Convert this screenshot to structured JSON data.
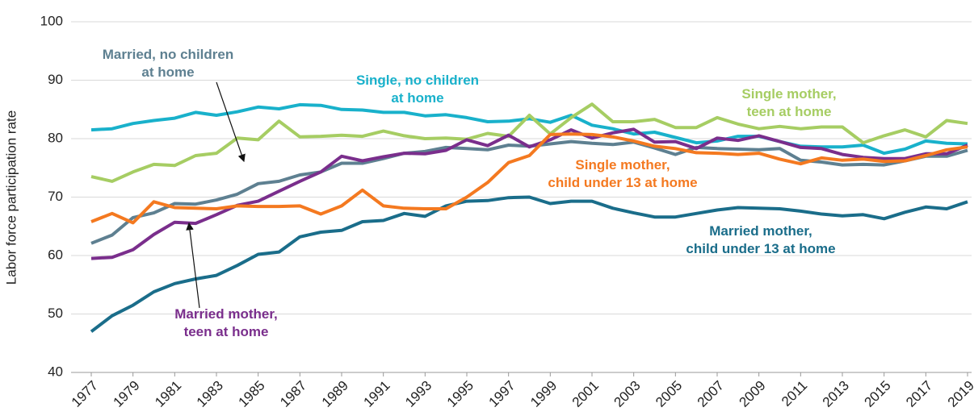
{
  "chart_data": {
    "type": "line",
    "ylabel": "Labor force participation rate",
    "x": [
      1977,
      1978,
      1979,
      1980,
      1981,
      1982,
      1983,
      1984,
      1985,
      1986,
      1987,
      1988,
      1989,
      1990,
      1991,
      1992,
      1993,
      1994,
      1995,
      1996,
      1997,
      1998,
      1999,
      2000,
      2001,
      2002,
      2003,
      2004,
      2005,
      2006,
      2007,
      2008,
      2009,
      2010,
      2011,
      2012,
      2013,
      2014,
      2015,
      2016,
      2017,
      2018,
      2019
    ],
    "xlim": [
      1977,
      2019
    ],
    "xticks": [
      1977,
      1979,
      1981,
      1983,
      1985,
      1987,
      1989,
      1991,
      1993,
      1995,
      1997,
      1999,
      2001,
      2003,
      2005,
      2007,
      2009,
      2011,
      2013,
      2015,
      2017,
      2019
    ],
    "ylim": [
      40,
      100
    ],
    "yticks": [
      40,
      50,
      60,
      70,
      80,
      90,
      100
    ],
    "grid": true,
    "series": [
      {
        "name": "Single, no children\nat home",
        "color": "#19b1cb",
        "values": [
          81.5,
          81.7,
          82.6,
          83.1,
          83.5,
          84.5,
          84,
          84.6,
          85.4,
          85.1,
          85.8,
          85.7,
          85,
          84.9,
          84.5,
          84.5,
          83.9,
          84.1,
          83.6,
          82.9,
          83,
          83.4,
          82.8,
          84,
          82.3,
          81.7,
          80.8,
          81.1,
          80.2,
          79.3,
          79.6,
          80.4,
          80.4,
          79.5,
          78.7,
          78.6,
          78.6,
          78.9,
          77.5,
          78.2,
          79.6,
          79.2,
          79.1
        ]
      },
      {
        "name": "Single mother,\nteen at home",
        "color": "#a6cd63",
        "values": [
          73.5,
          72.7,
          74.3,
          75.6,
          75.4,
          77.1,
          77.5,
          80.1,
          79.8,
          83,
          80.3,
          80.4,
          80.6,
          80.4,
          81.3,
          80.5,
          80,
          80.1,
          79.9,
          80.9,
          80.4,
          84,
          80.8,
          83.6,
          85.9,
          82.9,
          82.9,
          83.3,
          81.9,
          81.9,
          83.6,
          82.5,
          81.7,
          82.1,
          81.7,
          82,
          82,
          79.3,
          80.5,
          81.5,
          80.3,
          83.1,
          82.6
        ]
      },
      {
        "name": "Married, no children\nat home",
        "color": "#5e8091",
        "values": [
          62.1,
          63.5,
          66.5,
          67.3,
          68.9,
          68.8,
          69.5,
          70.5,
          72.3,
          72.7,
          73.8,
          74.3,
          75.8,
          75.8,
          76.6,
          77.5,
          77.8,
          78.5,
          78.3,
          78.1,
          78.9,
          78.7,
          79.1,
          79.5,
          79.2,
          79,
          79.4,
          78.4,
          77.3,
          78.5,
          78.3,
          78.2,
          78.1,
          78.3,
          76.3,
          76,
          75.5,
          75.6,
          75.5,
          76.2,
          77,
          77,
          78
        ]
      },
      {
        "name": "Married mother,\nchild under 13 at home",
        "color": "#1a6d8a",
        "values": [
          47,
          49.7,
          51.5,
          53.8,
          55.2,
          56,
          56.6,
          58.3,
          60.2,
          60.6,
          63.2,
          64,
          64.3,
          65.8,
          66,
          67.2,
          66.7,
          68.5,
          69.3,
          69.4,
          69.9,
          70,
          68.9,
          69.3,
          69.3,
          68.1,
          67.3,
          66.6,
          66.6,
          67.2,
          67.8,
          68.2,
          68.1,
          68,
          67.6,
          67.1,
          66.8,
          67,
          66.3,
          67.4,
          68.3,
          68,
          69.2
        ]
      },
      {
        "name": "Married mother,\nteen at home",
        "color": "#7a2e8c",
        "values": [
          59.5,
          59.7,
          61,
          63.6,
          65.7,
          65.5,
          67,
          68.6,
          69.3,
          71,
          72.7,
          74.3,
          77,
          76.2,
          76.9,
          77.5,
          77.4,
          78,
          79.8,
          78.8,
          80.6,
          78.6,
          79.8,
          81.5,
          80.1,
          81,
          81.6,
          79.4,
          79.5,
          78.3,
          80.1,
          79.7,
          80.5,
          79.5,
          78.5,
          78.3,
          77.3,
          76.8,
          76.6,
          76.6,
          77.4,
          77.4,
          78.9
        ]
      },
      {
        "name": "Single mother,\nchild under 13 at home",
        "color": "#f47920",
        "values": [
          65.8,
          67.2,
          65.6,
          69.2,
          68.2,
          68.1,
          68,
          68.5,
          68.4,
          68.4,
          68.5,
          67.1,
          68.5,
          71.2,
          68.5,
          68.1,
          68,
          68,
          70,
          72.5,
          75.9,
          77.1,
          80.7,
          80.8,
          80.7,
          80.3,
          79.6,
          78.7,
          78.3,
          77.6,
          77.5,
          77.3,
          77.5,
          76.5,
          75.7,
          76.7,
          76.3,
          76.5,
          76.1,
          76.2,
          77.1,
          78.1,
          78.6
        ]
      }
    ]
  }
}
